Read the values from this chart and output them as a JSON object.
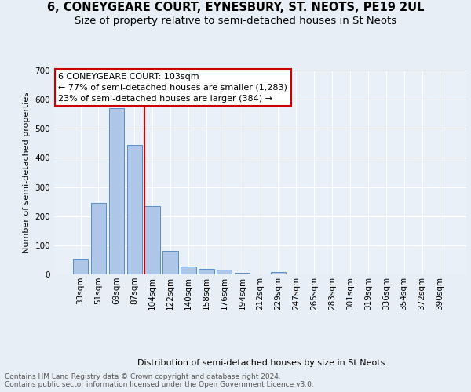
{
  "title": "6, CONEYGEARE COURT, EYNESBURY, ST. NEOTS, PE19 2UL",
  "subtitle": "Size of property relative to semi-detached houses in St Neots",
  "xlabel": "Distribution of semi-detached houses by size in St Neots",
  "ylabel": "Number of semi-detached properties",
  "bar_labels": [
    "33sqm",
    "51sqm",
    "69sqm",
    "87sqm",
    "104sqm",
    "122sqm",
    "140sqm",
    "158sqm",
    "176sqm",
    "194sqm",
    "212sqm",
    "229sqm",
    "247sqm",
    "265sqm",
    "283sqm",
    "301sqm",
    "319sqm",
    "336sqm",
    "354sqm",
    "372sqm",
    "390sqm"
  ],
  "bar_values": [
    55,
    245,
    570,
    445,
    235,
    80,
    28,
    20,
    15,
    5,
    0,
    8,
    0,
    0,
    0,
    0,
    0,
    0,
    0,
    0,
    0
  ],
  "bar_color": "#aec6e8",
  "bar_edge_color": "#5a8fc4",
  "annotation_text": "6 CONEYGEARE COURT: 103sqm\n← 77% of semi-detached houses are smaller (1,283)\n23% of semi-detached houses are larger (384) →",
  "annotation_box_color": "#ffffff",
  "annotation_box_edge": "#cc0000",
  "vline_color": "#cc0000",
  "vline_x_index": 4,
  "ylim": [
    0,
    700
  ],
  "yticks": [
    0,
    100,
    200,
    300,
    400,
    500,
    600,
    700
  ],
  "footnote": "Contains HM Land Registry data © Crown copyright and database right 2024.\nContains public sector information licensed under the Open Government Licence v3.0.",
  "bg_color": "#e8eef5",
  "plot_bg_color": "#eaf0f8",
  "title_fontsize": 10.5,
  "subtitle_fontsize": 9.5,
  "axis_label_fontsize": 8,
  "tick_fontsize": 7.5,
  "annotation_fontsize": 8,
  "footnote_fontsize": 6.5
}
